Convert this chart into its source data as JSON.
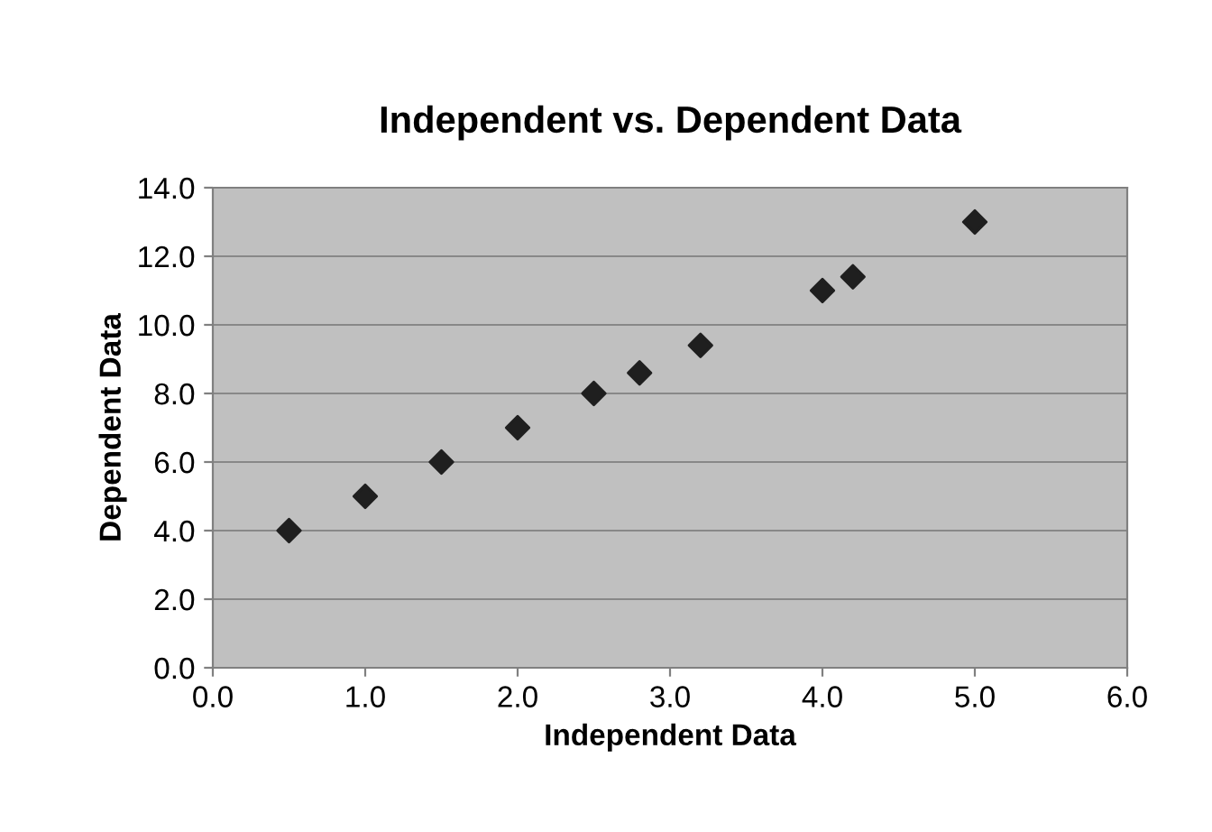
{
  "chart_data": {
    "type": "scatter",
    "title": "Independent vs. Dependent Data",
    "xlabel": "Independent Data",
    "ylabel": "Dependent Data",
    "x": [
      0.5,
      1.0,
      1.5,
      2.0,
      2.5,
      2.8,
      3.2,
      4.0,
      4.2,
      5.0
    ],
    "values": [
      4.0,
      5.0,
      6.0,
      7.0,
      8.0,
      8.6,
      9.4,
      11.0,
      11.4,
      13.0
    ],
    "color": "#1f1f1f",
    "marker": "diamond",
    "grid": "y",
    "legend": false,
    "xlim": [
      0,
      6
    ],
    "xticks": [
      {
        "value": 0,
        "label": "0.0"
      },
      {
        "value": 1,
        "label": "1.0"
      },
      {
        "value": 2,
        "label": "2.0"
      },
      {
        "value": 3,
        "label": "3.0"
      },
      {
        "value": 4,
        "label": "4.0"
      },
      {
        "value": 5,
        "label": "5.0"
      },
      {
        "value": 6,
        "label": "6.0"
      }
    ],
    "ylim": [
      0,
      14
    ],
    "yticks": [
      {
        "value": 0,
        "label": "0.0"
      },
      {
        "value": 2,
        "label": "2.0"
      },
      {
        "value": 4,
        "label": "4.0"
      },
      {
        "value": 6,
        "label": "6.0"
      },
      {
        "value": 8,
        "label": "8.0"
      },
      {
        "value": 10,
        "label": "10.0"
      },
      {
        "value": 12,
        "label": "12.0"
      },
      {
        "value": 14,
        "label": "14.0"
      }
    ]
  }
}
